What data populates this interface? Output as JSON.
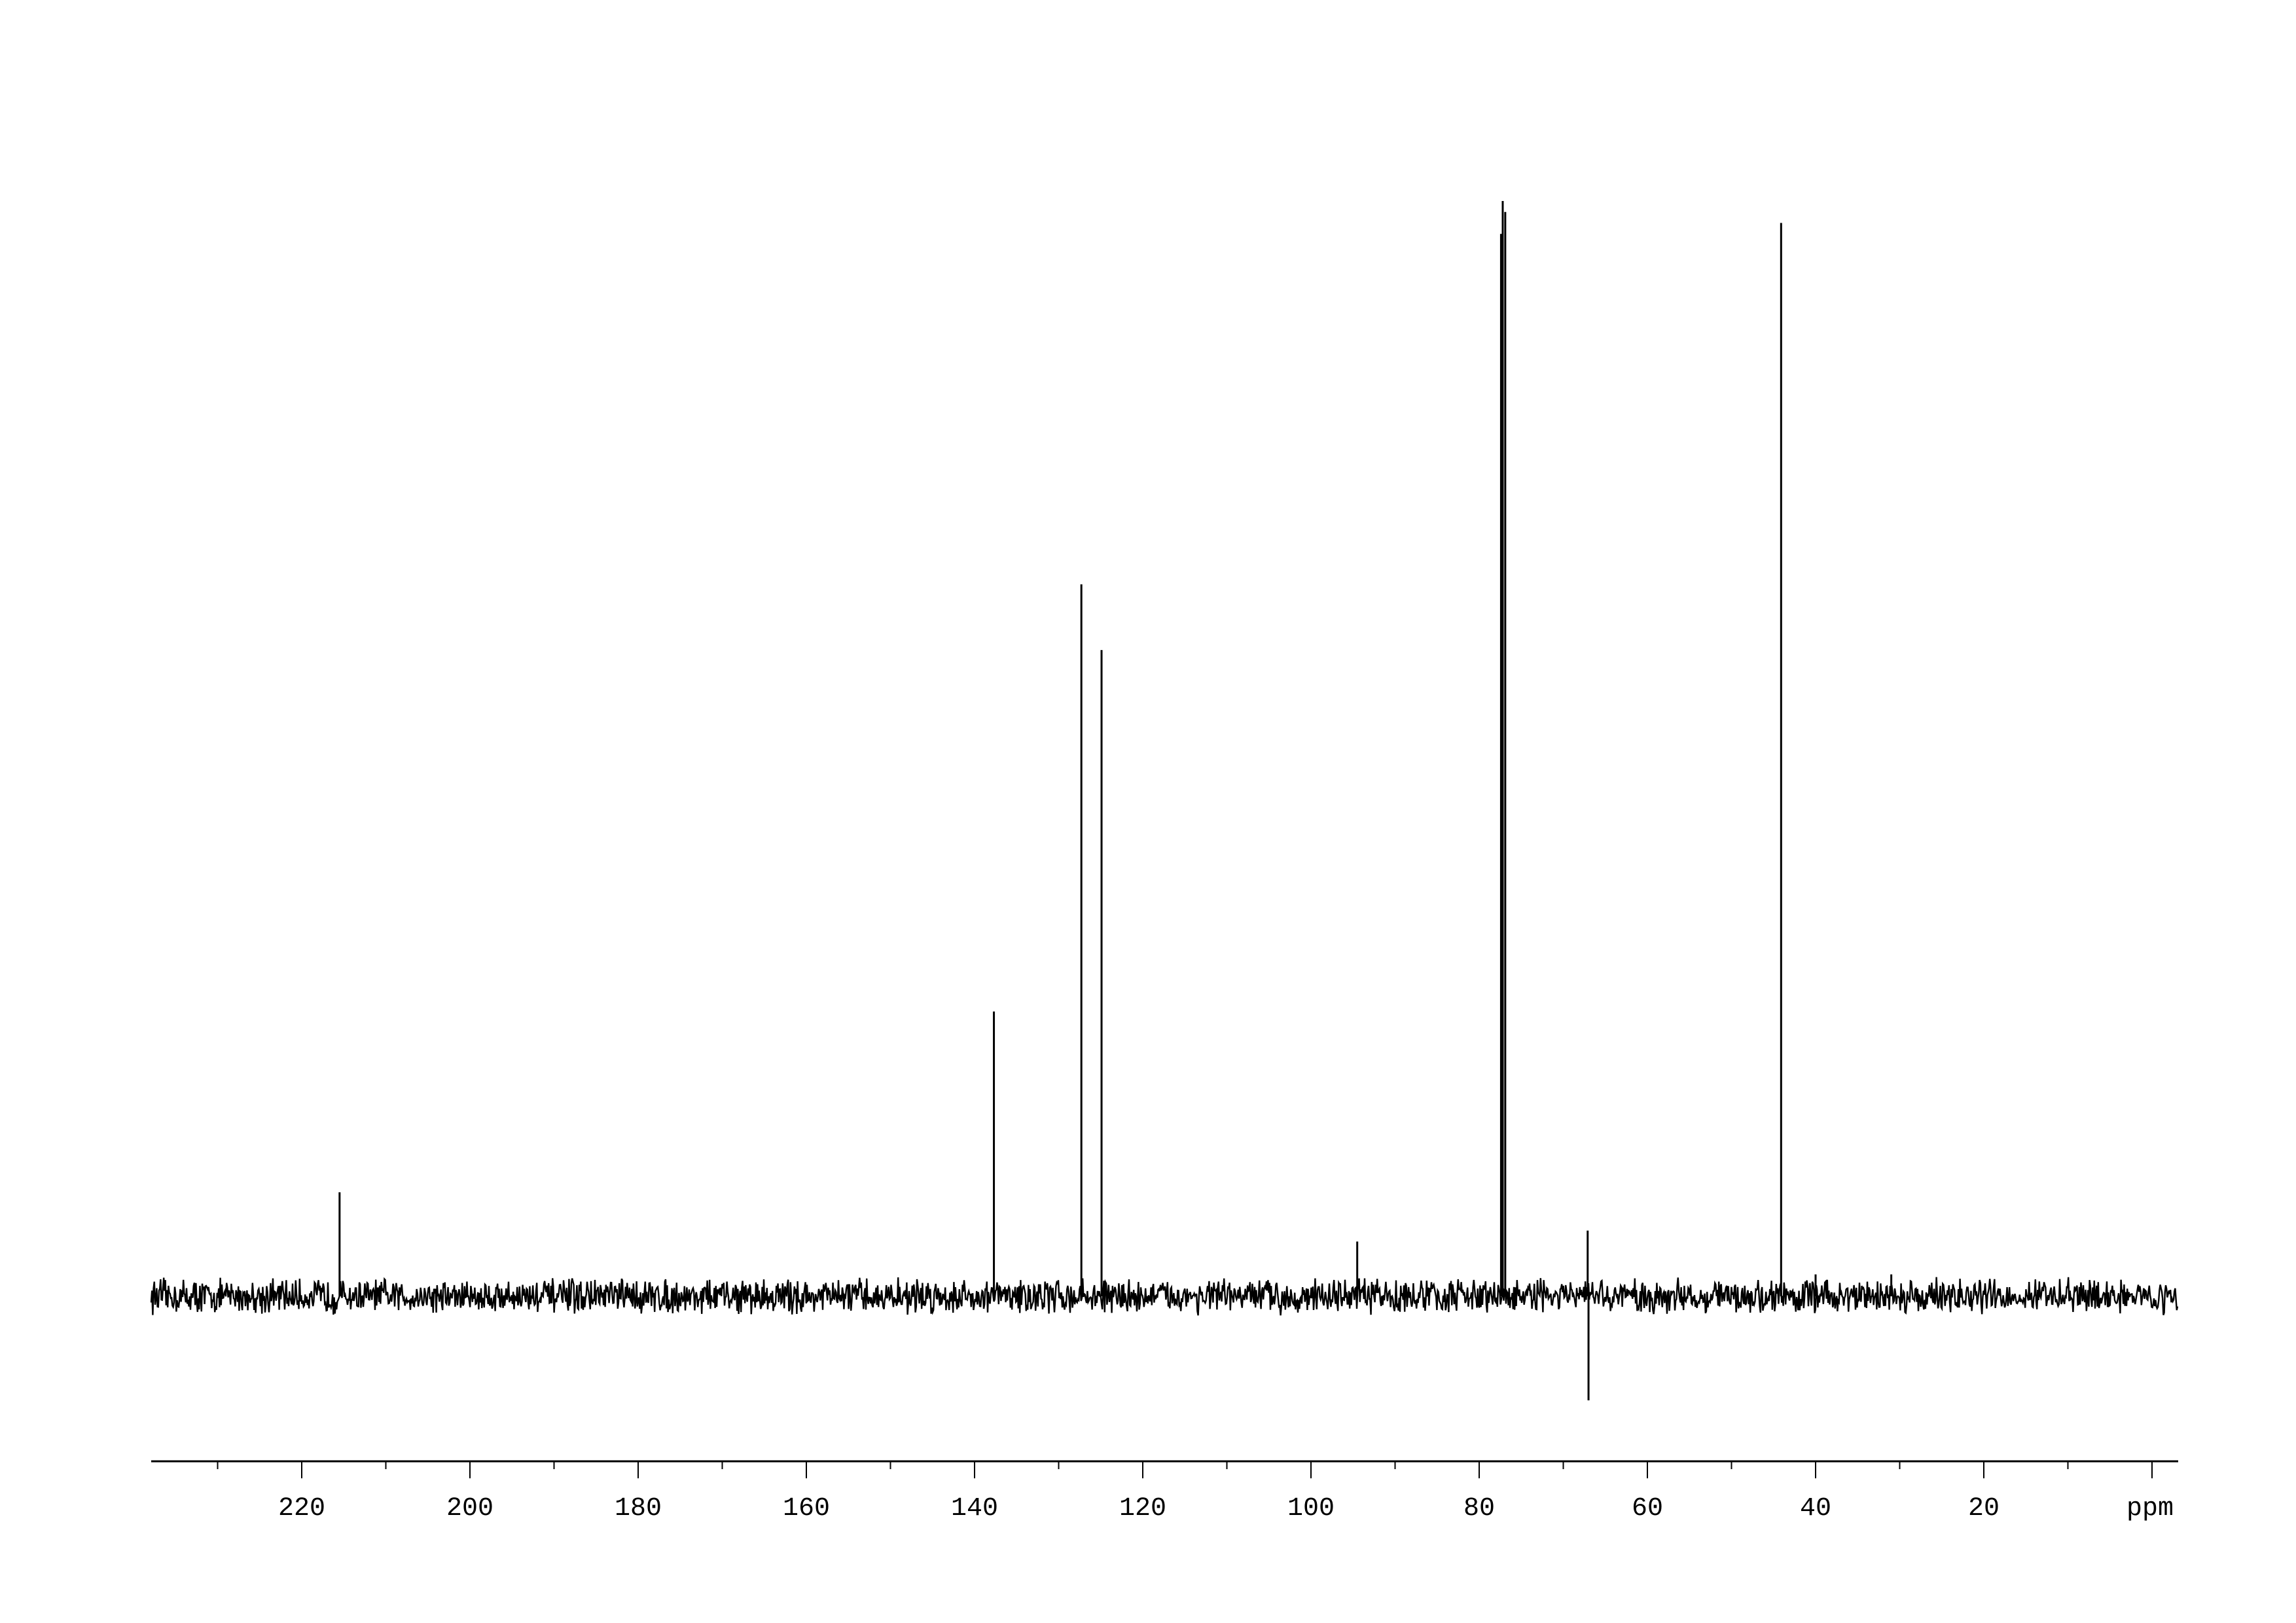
{
  "chart_data": {
    "type": "line",
    "title": "",
    "xlabel": "ppm",
    "ylabel": "",
    "xlim": [
      238,
      -3
    ],
    "x_reversed": true,
    "ylim": [
      -12,
      100
    ],
    "grid": false,
    "line_color": "#000000",
    "x_ticks": [
      220,
      200,
      180,
      160,
      140,
      120,
      100,
      80,
      60,
      40,
      20
    ],
    "x_tick_labels": [
      "220",
      "200",
      "180",
      "160",
      "140",
      "120",
      "100",
      "80",
      "60",
      "40",
      "20"
    ],
    "x_minor_tick_step": 10,
    "peaks": [
      {
        "ppm": 215.5,
        "intensity": 9.5
      },
      {
        "ppm": 137.7,
        "intensity": 26
      },
      {
        "ppm": 127.3,
        "intensity": 65
      },
      {
        "ppm": 124.9,
        "intensity": 59
      },
      {
        "ppm": 94.5,
        "intensity": 5
      },
      {
        "ppm": 77.4,
        "intensity": 97
      },
      {
        "ppm": 77.2,
        "intensity": 100
      },
      {
        "ppm": 76.9,
        "intensity": 99
      },
      {
        "ppm": 67.1,
        "intensity": 6
      },
      {
        "ppm": 67.0,
        "intensity": -9.5
      },
      {
        "ppm": 44.1,
        "intensity": 98
      },
      {
        "ppm": 40.0,
        "intensity": 2
      },
      {
        "ppm": 31.0,
        "intensity": 2
      }
    ],
    "noise_level": 1.2
  }
}
